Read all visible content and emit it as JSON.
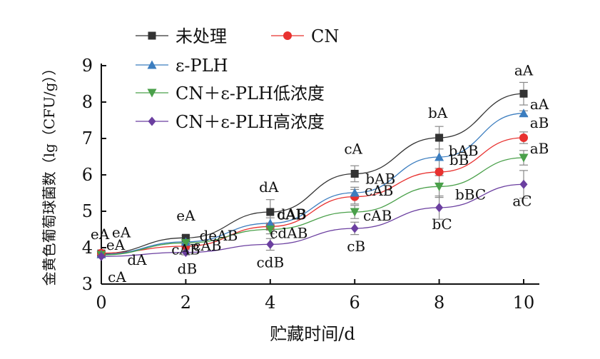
{
  "chart_data": {
    "type": "line",
    "title": "",
    "xlabel": "贮藏时间/d",
    "ylabel": "金黄色葡萄球菌数（lg（CFU/g））",
    "x": [
      0,
      2,
      4,
      6,
      8,
      10
    ],
    "xlim": [
      0,
      10
    ],
    "ylim": [
      3,
      9
    ],
    "xticks": [
      "0",
      "2",
      "4",
      "6",
      "8",
      "10"
    ],
    "yticks": [
      "3",
      "4",
      "5",
      "6",
      "7",
      "8",
      "9"
    ],
    "grid": false,
    "legend_position": "top-left",
    "series": [
      {
        "name": "未处理",
        "color": "#333333",
        "marker": "square",
        "values": [
          3.84,
          4.27,
          4.98,
          6.03,
          7.02,
          8.23
        ],
        "errors": [
          0.05,
          0.06,
          0.34,
          0.22,
          0.31,
          0.31
        ],
        "labels": [
          "eA",
          "eA",
          "dA",
          "cA",
          "bA",
          "aA"
        ]
      },
      {
        "name": "CN",
        "color": "#e8312f",
        "marker": "circle",
        "values": [
          3.85,
          4.04,
          4.58,
          5.4,
          6.08,
          7.02
        ],
        "errors": [
          0.05,
          0.06,
          0.1,
          0.2,
          0.1,
          0.16
        ],
        "labels": [
          "eA",
          "deAB",
          "cAB",
          "bAB",
          "bB",
          "aB"
        ]
      },
      {
        "name": "ε-PLH",
        "color": "#3b7dbf",
        "marker": "triangle-up",
        "values": [
          3.82,
          4.16,
          4.67,
          5.51,
          6.49,
          7.69
        ],
        "errors": [
          0.05,
          0.05,
          0.15,
          0.15,
          0.45,
          0.07
        ],
        "labels": [
          "eA",
          "cAB",
          "dAB",
          "cAB",
          "bAB",
          "aA"
        ]
      },
      {
        "name": "CN＋ε-PLH低浓度",
        "color": "#4aa04a",
        "marker": "triangle-down",
        "values": [
          3.8,
          4.13,
          4.5,
          4.98,
          5.68,
          6.47
        ],
        "errors": [
          0.05,
          0.05,
          0.12,
          0.18,
          0.3,
          0.2
        ],
        "labels": [
          "dA",
          "cAB",
          "cdAB",
          "cAB",
          "bBC",
          "aB"
        ]
      },
      {
        "name": "CN＋ε-PLH高浓度",
        "color": "#6b3fa0",
        "marker": "diamond",
        "values": [
          3.76,
          3.87,
          4.09,
          4.53,
          5.1,
          5.74
        ],
        "errors": [
          0.04,
          0.07,
          0.16,
          0.17,
          0.32,
          0.38
        ],
        "labels": [
          "cA",
          "dB",
          "cdB",
          "cB",
          "bC",
          "aC"
        ]
      }
    ]
  }
}
